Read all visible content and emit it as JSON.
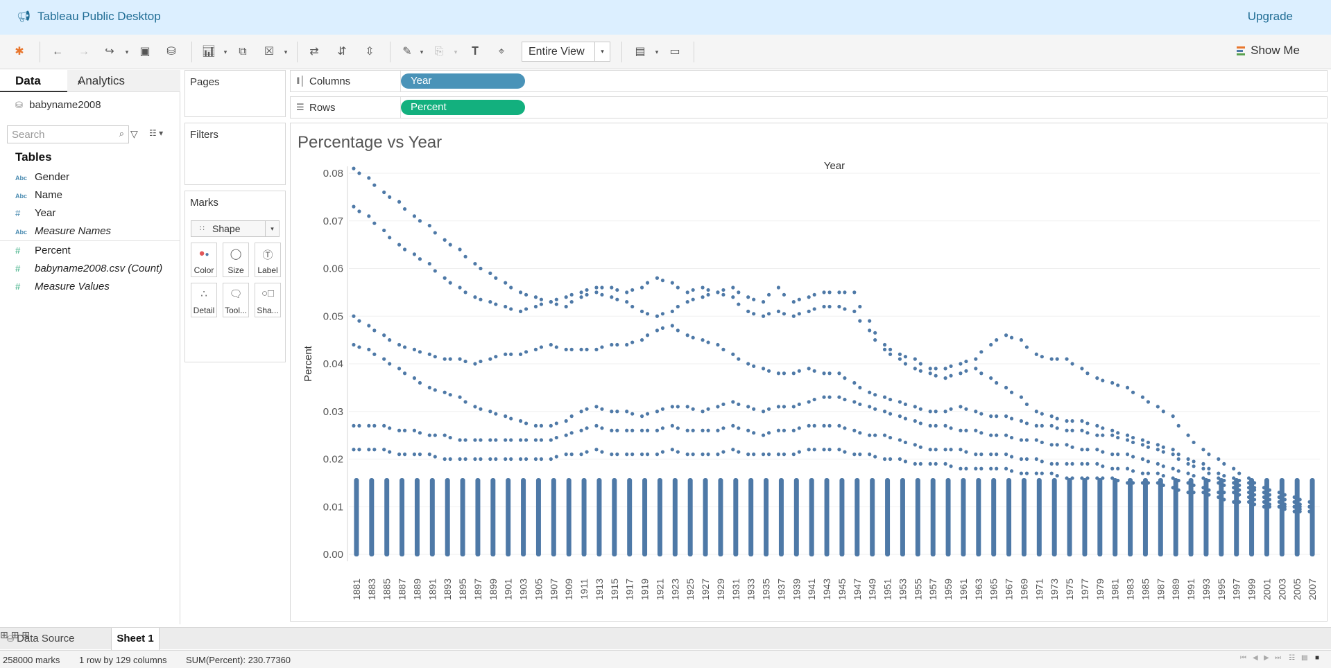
{
  "app": {
    "title": "Tableau Public Desktop",
    "upgrade_label": "Upgrade"
  },
  "toolbar": {
    "fit_value": "Entire View",
    "show_me_label": "Show Me"
  },
  "data_pane": {
    "tab_data": "Data",
    "tab_analytics": "Analytics",
    "datasource": "babyname2008",
    "search_placeholder": "Search",
    "tables_header": "Tables",
    "dimensions": [
      {
        "type": "Abc",
        "name": "Gender"
      },
      {
        "type": "Abc",
        "name": "Name"
      },
      {
        "type": "#",
        "name": "Year"
      },
      {
        "type": "Abc",
        "name": "Measure Names"
      }
    ],
    "measures": [
      {
        "type": "#",
        "name": "Percent"
      },
      {
        "type": "#",
        "name": "babyname2008.csv (Count)"
      },
      {
        "type": "#",
        "name": "Measure Values"
      }
    ]
  },
  "cards": {
    "pages": "Pages",
    "filters": "Filters",
    "marks": "Marks"
  },
  "marks": {
    "type": "Shape",
    "buttons": [
      "Color",
      "Size",
      "Label",
      "Detail",
      "Tool...",
      "Sha..."
    ]
  },
  "shelves": {
    "columns_label": "Columns",
    "columns_pill": "Year",
    "rows_label": "Rows",
    "rows_pill": "Percent"
  },
  "colors": {
    "columns_pill": "#4a93b8",
    "rows_pill": "#13b07e",
    "marks": "#4e79a7",
    "accent": "#1f6c94"
  },
  "sheet_tabs": {
    "data_source": "Data Source",
    "sheet1": "Sheet 1"
  },
  "status": {
    "marks": "258000 marks",
    "layout": "1 row by 129 columns",
    "sum": "SUM(Percent): 230.77360"
  },
  "chart_data": {
    "type": "scatter",
    "title": "Percentage vs Year",
    "column_header": "Year",
    "ylabel": "Percent",
    "ylim": [
      0,
      0.08
    ],
    "yticks": [
      "0.00",
      "0.01",
      "0.02",
      "0.03",
      "0.04",
      "0.05",
      "0.06",
      "0.07",
      "0.08"
    ],
    "x": [
      "1881",
      "1883",
      "1885",
      "1887",
      "1889",
      "1891",
      "1893",
      "1895",
      "1897",
      "1899",
      "1901",
      "1903",
      "1905",
      "1907",
      "1909",
      "1911",
      "1913",
      "1915",
      "1917",
      "1919",
      "1921",
      "1923",
      "1925",
      "1927",
      "1929",
      "1931",
      "1933",
      "1935",
      "1937",
      "1939",
      "1941",
      "1943",
      "1945",
      "1947",
      "1949",
      "1951",
      "1953",
      "1955",
      "1957",
      "1959",
      "1961",
      "1963",
      "1965",
      "1967",
      "1969",
      "1971",
      "1973",
      "1975",
      "1977",
      "1979",
      "1981",
      "1983",
      "1985",
      "1987",
      "1989",
      "1991",
      "1993",
      "1995",
      "1997",
      "1999",
      "2001",
      "2003",
      "2005",
      "2007"
    ],
    "series": [
      {
        "values": [
          0.081,
          0.079,
          0.076,
          0.074,
          0.071,
          0.069,
          0.066,
          0.064,
          0.061,
          0.059,
          0.057,
          0.055,
          0.054,
          0.053,
          0.054,
          0.055,
          0.056,
          0.056,
          0.055,
          0.056,
          0.058,
          0.057,
          0.055,
          0.056,
          0.055,
          0.056,
          0.054,
          0.053,
          0.056,
          0.053,
          0.054,
          0.055,
          0.055,
          0.055,
          0.049,
          0.044,
          0.042,
          0.041,
          0.039,
          0.039,
          0.04,
          0.041,
          0.044,
          0.046,
          0.045,
          0.042,
          0.041,
          0.041,
          0.039,
          0.037,
          0.036,
          0.035,
          0.033,
          0.031,
          0.029,
          0.025,
          0.022,
          0.02,
          0.018,
          0.016,
          0.014,
          0.013,
          0.012,
          0.011
        ]
      },
      {
        "values": [
          0.073,
          0.071,
          0.068,
          0.065,
          0.063,
          0.061,
          0.058,
          0.056,
          0.054,
          0.053,
          0.052,
          0.051,
          0.052,
          0.053,
          0.052,
          0.054,
          0.055,
          0.054,
          0.053,
          0.051,
          0.05,
          0.051,
          0.053,
          0.054,
          0.055,
          0.054,
          0.051,
          0.05,
          0.051,
          0.05,
          0.051,
          0.052,
          0.052,
          0.051,
          0.047,
          0.043,
          0.041,
          0.039,
          0.038,
          0.037,
          0.038,
          0.039,
          0.037,
          0.035,
          0.033,
          0.03,
          0.029,
          0.028,
          0.028,
          0.027,
          0.026,
          0.025,
          0.024,
          0.023,
          0.022,
          0.02,
          0.019,
          0.017,
          0.016,
          0.015,
          0.013,
          0.012,
          0.011,
          0.01
        ]
      },
      {
        "values": [
          0.05,
          0.048,
          0.046,
          0.044,
          0.043,
          0.042,
          0.041,
          0.041,
          0.04,
          0.041,
          0.042,
          0.042,
          0.043,
          0.044,
          0.043,
          0.043,
          0.043,
          0.044,
          0.044,
          0.045,
          0.047,
          0.048,
          0.046,
          0.045,
          0.044,
          0.042,
          0.04,
          0.039,
          0.038,
          0.038,
          0.039,
          0.038,
          0.038,
          0.036,
          0.034,
          0.033,
          0.032,
          0.031,
          0.03,
          0.03,
          0.031,
          0.03,
          0.029,
          0.029,
          0.028,
          0.027,
          0.027,
          0.026,
          0.026,
          0.025,
          0.025,
          0.024,
          0.023,
          0.022,
          0.021,
          0.019,
          0.018,
          0.016,
          0.015,
          0.014,
          0.013,
          0.012,
          0.011,
          0.01
        ]
      },
      {
        "values": [
          0.044,
          0.043,
          0.041,
          0.039,
          0.037,
          0.035,
          0.034,
          0.033,
          0.031,
          0.03,
          0.029,
          0.028,
          0.027,
          0.027,
          0.028,
          0.03,
          0.031,
          0.03,
          0.03,
          0.029,
          0.03,
          0.031,
          0.031,
          0.03,
          0.031,
          0.032,
          0.031,
          0.03,
          0.031,
          0.031,
          0.032,
          0.033,
          0.033,
          0.032,
          0.031,
          0.03,
          0.029,
          0.028,
          0.027,
          0.027,
          0.026,
          0.026,
          0.025,
          0.025,
          0.024,
          0.024,
          0.023,
          0.023,
          0.022,
          0.022,
          0.021,
          0.021,
          0.02,
          0.019,
          0.018,
          0.017,
          0.016,
          0.015,
          0.014,
          0.013,
          0.012,
          0.011,
          0.01,
          0.01
        ]
      },
      {
        "values": [
          0.027,
          0.027,
          0.027,
          0.026,
          0.026,
          0.025,
          0.025,
          0.024,
          0.024,
          0.024,
          0.024,
          0.024,
          0.024,
          0.024,
          0.025,
          0.026,
          0.027,
          0.026,
          0.026,
          0.026,
          0.026,
          0.027,
          0.026,
          0.026,
          0.026,
          0.027,
          0.026,
          0.025,
          0.026,
          0.026,
          0.027,
          0.027,
          0.027,
          0.026,
          0.025,
          0.025,
          0.024,
          0.023,
          0.022,
          0.022,
          0.022,
          0.021,
          0.021,
          0.021,
          0.02,
          0.02,
          0.019,
          0.019,
          0.019,
          0.019,
          0.018,
          0.018,
          0.017,
          0.017,
          0.016,
          0.015,
          0.014,
          0.013,
          0.013,
          0.012,
          0.011,
          0.01,
          0.01,
          0.009
        ]
      },
      {
        "values": [
          0.022,
          0.022,
          0.022,
          0.021,
          0.021,
          0.021,
          0.02,
          0.02,
          0.02,
          0.02,
          0.02,
          0.02,
          0.02,
          0.02,
          0.021,
          0.021,
          0.022,
          0.021,
          0.021,
          0.021,
          0.021,
          0.022,
          0.021,
          0.021,
          0.021,
          0.022,
          0.021,
          0.021,
          0.021,
          0.021,
          0.022,
          0.022,
          0.022,
          0.021,
          0.021,
          0.02,
          0.02,
          0.019,
          0.019,
          0.019,
          0.018,
          0.018,
          0.018,
          0.018,
          0.017,
          0.017,
          0.017,
          0.016,
          0.016,
          0.016,
          0.016,
          0.015,
          0.015,
          0.015,
          0.014,
          0.013,
          0.013,
          0.012,
          0.011,
          0.011,
          0.01,
          0.01,
          0.009,
          0.009
        ]
      }
    ],
    "dense_column_max": 0.016,
    "dense_column_min": 0.0
  }
}
